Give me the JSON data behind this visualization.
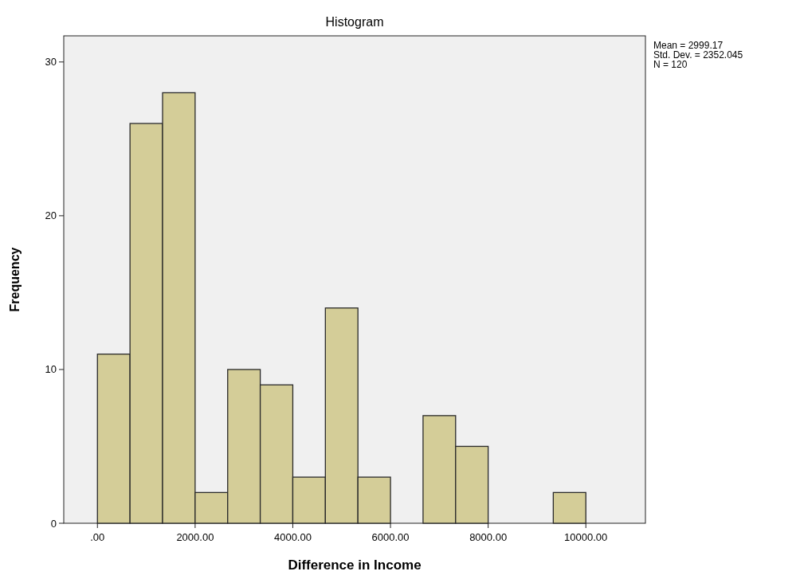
{
  "chart_data": {
    "type": "histogram",
    "title": "Histogram",
    "xlabel": "Difference in Income",
    "ylabel": "Frequency",
    "bins": [
      0,
      666.67,
      1333.33,
      2000,
      2666.67,
      3333.33,
      4000,
      4666.67,
      5333.33,
      6000,
      6666.67,
      7333.33,
      8000,
      8666.67,
      9333.33,
      10000
    ],
    "values": [
      11,
      26,
      28,
      2,
      10,
      9,
      3,
      14,
      3,
      0,
      7,
      5,
      0,
      0,
      2
    ],
    "color": "#d4cd98",
    "xlim": [
      -690,
      11220
    ],
    "xticks": [
      {
        "value": 0,
        "label": ".00"
      },
      {
        "value": 2000,
        "label": "2000.00"
      },
      {
        "value": 4000,
        "label": "4000.00"
      },
      {
        "value": 6000,
        "label": "6000.00"
      },
      {
        "value": 8000,
        "label": "8000.00"
      },
      {
        "value": 10000,
        "label": "10000.00"
      }
    ],
    "ylim": [
      0,
      31.7
    ],
    "yticks": [
      0,
      10,
      20,
      30
    ],
    "grid": false,
    "annotations": [
      "Mean = 2999.17",
      "Std. Dev. = 2352.045",
      "N = 120"
    ]
  }
}
